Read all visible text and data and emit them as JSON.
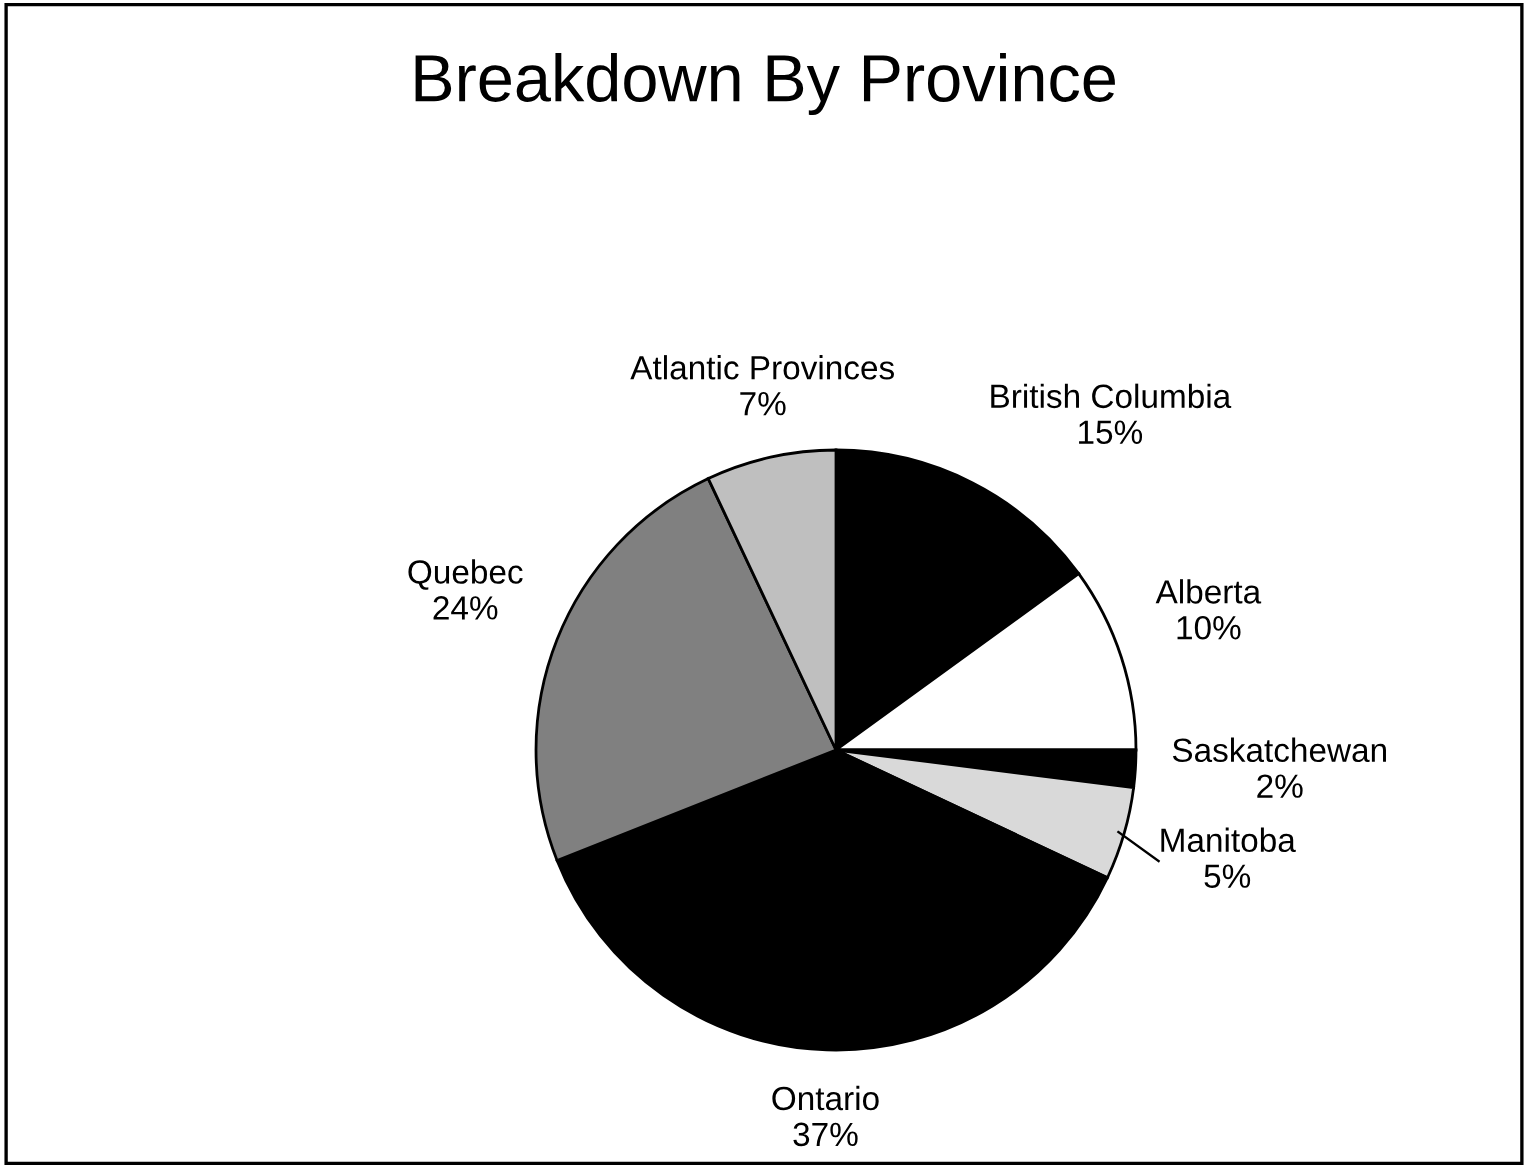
{
  "chart_data": {
    "type": "pie",
    "title": "Breakdown By Province",
    "categories": [
      "British Columbia",
      "Alberta",
      "Saskatchewan",
      "Manitoba",
      "Ontario",
      "Quebec",
      "Atlantic Provinces"
    ],
    "values": [
      15,
      10,
      2,
      5,
      37,
      24,
      7
    ],
    "value_labels": [
      "15%",
      "10%",
      "2%",
      "5%",
      "37%",
      "24%",
      "7%"
    ],
    "colors": [
      "#000000",
      "#ffffff",
      "#000000",
      "#d9d9d9",
      "#000000",
      "#808080",
      "#bfbfbf"
    ]
  }
}
